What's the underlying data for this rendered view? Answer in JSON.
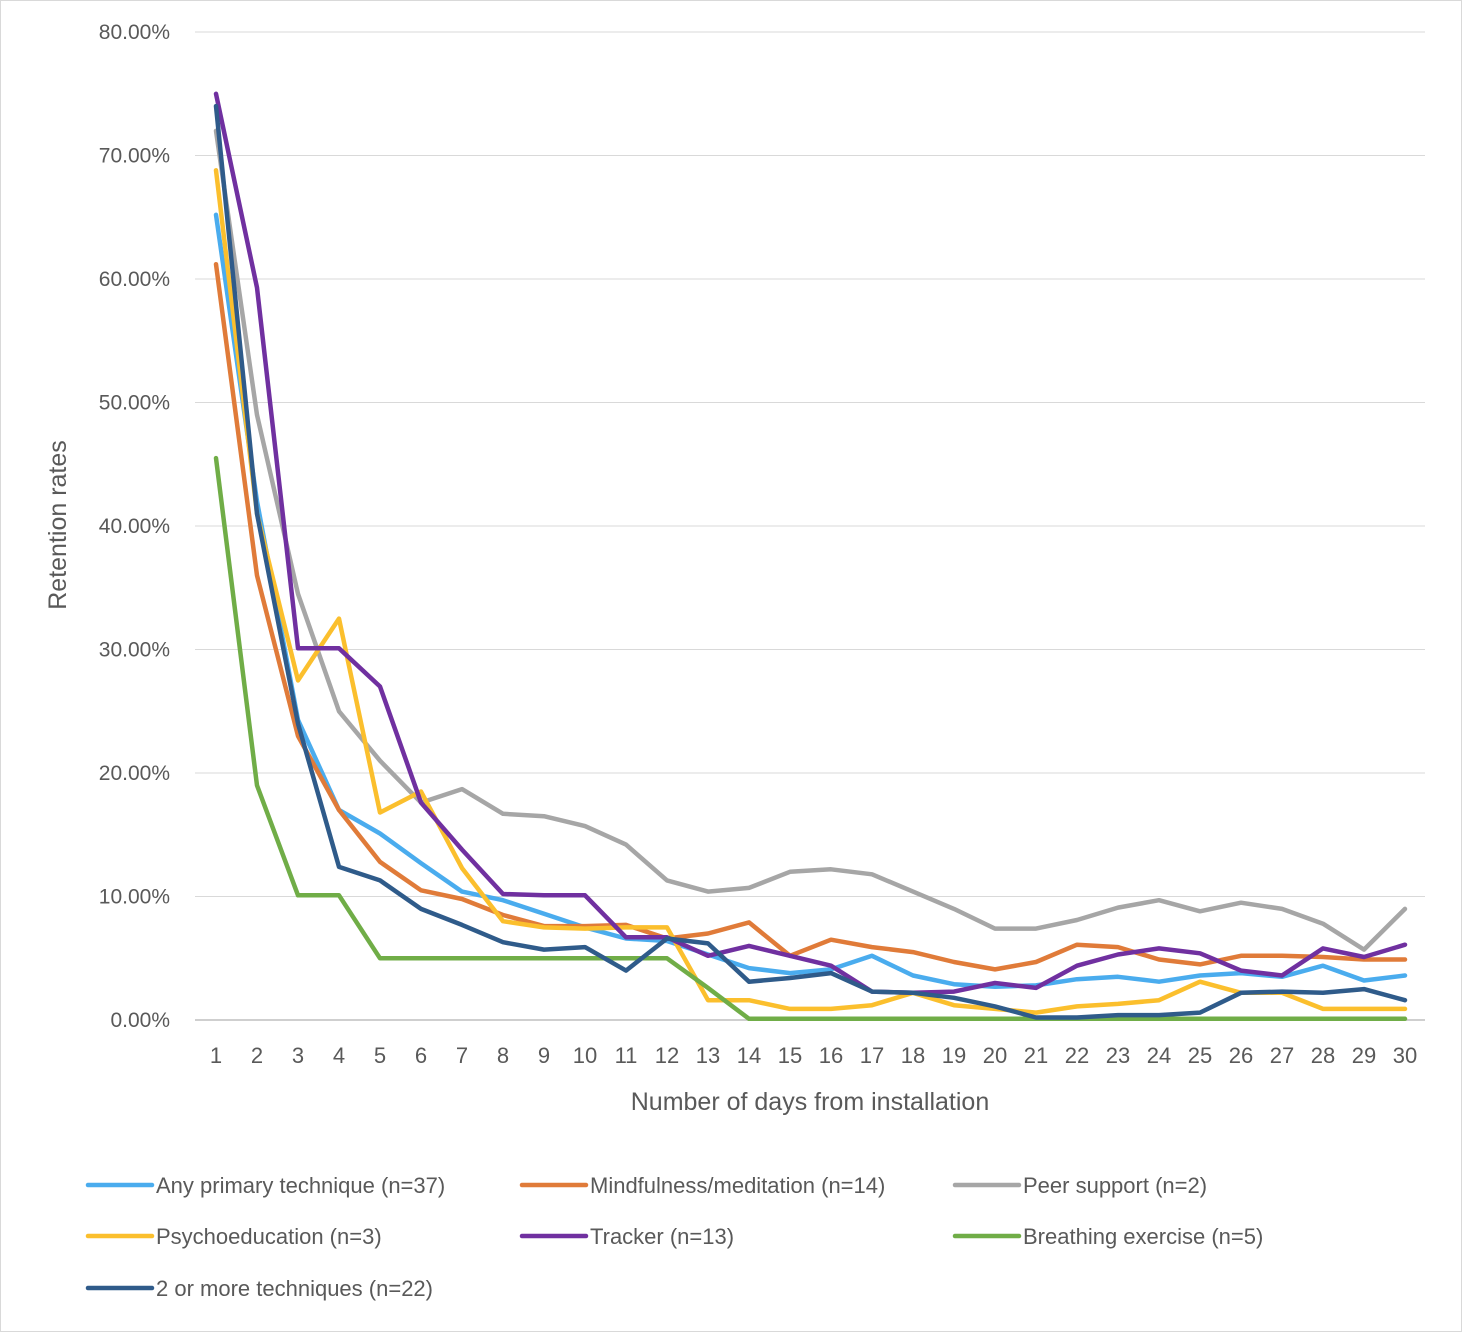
{
  "chart_data": {
    "type": "line",
    "title": "",
    "xlabel": "Number of days from installation",
    "ylabel": "Retention rates",
    "ylim": [
      0,
      0.8
    ],
    "yticks": [
      0,
      0.1,
      0.2,
      0.3,
      0.4,
      0.5,
      0.6,
      0.7,
      0.8
    ],
    "ytick_labels": [
      "0.00%",
      "10.00%",
      "20.00%",
      "30.00%",
      "40.00%",
      "50.00%",
      "60.00%",
      "70.00%",
      "80.00%"
    ],
    "x": [
      1,
      2,
      3,
      4,
      5,
      6,
      7,
      8,
      9,
      10,
      11,
      12,
      13,
      14,
      15,
      16,
      17,
      18,
      19,
      20,
      21,
      22,
      23,
      24,
      25,
      26,
      27,
      28,
      29,
      30
    ],
    "grid": "horizontal",
    "legend_position": "bottom",
    "series": [
      {
        "name": "Any primary technique (n=37)",
        "color": "#4aacee",
        "values": [
          0.652,
          0.42,
          0.243,
          0.17,
          0.151,
          0.127,
          0.104,
          0.097,
          0.086,
          0.075,
          0.066,
          0.064,
          0.053,
          0.042,
          0.038,
          0.041,
          0.052,
          0.036,
          0.029,
          0.027,
          0.028,
          0.033,
          0.035,
          0.031,
          0.036,
          0.038,
          0.035,
          0.044,
          0.032,
          0.036
        ]
      },
      {
        "name": "Mindfulness/meditation (n=14)",
        "color": "#e07b39",
        "values": [
          0.612,
          0.36,
          0.23,
          0.17,
          0.128,
          0.105,
          0.098,
          0.085,
          0.076,
          0.076,
          0.077,
          0.066,
          0.07,
          0.079,
          0.052,
          0.065,
          0.059,
          0.055,
          0.047,
          0.041,
          0.047,
          0.061,
          0.059,
          0.049,
          0.045,
          0.052,
          0.052,
          0.051,
          0.049,
          0.049
        ]
      },
      {
        "name": "Peer support (n=2)",
        "color": "#a6a6a6",
        "values": [
          0.72,
          0.49,
          0.345,
          0.25,
          0.21,
          0.176,
          0.187,
          0.167,
          0.165,
          0.157,
          0.142,
          0.113,
          0.104,
          0.107,
          0.12,
          0.122,
          0.118,
          0.104,
          0.09,
          0.074,
          0.074,
          0.081,
          0.091,
          0.097,
          0.088,
          0.095,
          0.09,
          0.078,
          0.057,
          0.09
        ]
      },
      {
        "name": "Psychoeducation (n=3)",
        "color": "#fbbf2d",
        "values": [
          0.688,
          0.41,
          0.275,
          0.325,
          0.168,
          0.185,
          0.123,
          0.08,
          0.075,
          0.074,
          0.075,
          0.075,
          0.016,
          0.016,
          0.009,
          0.009,
          0.012,
          0.022,
          0.012,
          0.009,
          0.006,
          0.011,
          0.013,
          0.016,
          0.031,
          0.022,
          0.022,
          0.009,
          0.009,
          0.009
        ]
      },
      {
        "name": "Tracker (n=13)",
        "color": "#7030a0",
        "values": [
          0.75,
          0.593,
          0.301,
          0.301,
          0.27,
          0.176,
          0.138,
          0.102,
          0.101,
          0.101,
          0.067,
          0.067,
          0.052,
          0.06,
          0.052,
          0.044,
          0.023,
          0.022,
          0.023,
          0.03,
          0.026,
          0.044,
          0.053,
          0.058,
          0.054,
          0.04,
          0.036,
          0.058,
          0.051,
          0.061
        ]
      },
      {
        "name": "Breathing exercise (n=5)",
        "color": "#70ad47",
        "values": [
          0.455,
          0.19,
          0.101,
          0.101,
          0.05,
          0.05,
          0.05,
          0.05,
          0.05,
          0.05,
          0.05,
          0.05,
          0.026,
          0.001,
          0.001,
          0.001,
          0.001,
          0.001,
          0.001,
          0.001,
          0.001,
          0.001,
          0.001,
          0.001,
          0.001,
          0.001,
          0.001,
          0.001,
          0.001,
          0.001
        ]
      },
      {
        "name": "2 or more techniques (n=22)",
        "color": "#2f5b8a",
        "values": [
          0.74,
          0.41,
          0.24,
          0.124,
          0.113,
          0.09,
          0.077,
          0.063,
          0.057,
          0.059,
          0.04,
          0.066,
          0.062,
          0.031,
          0.034,
          0.038,
          0.023,
          0.022,
          0.018,
          0.011,
          0.002,
          0.002,
          0.004,
          0.004,
          0.006,
          0.022,
          0.023,
          0.022,
          0.025,
          0.016
        ]
      }
    ]
  }
}
